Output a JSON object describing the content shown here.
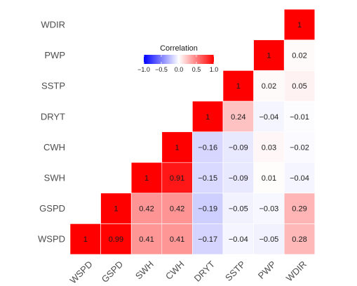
{
  "chart_data": {
    "type": "heatmap",
    "variables": [
      "WSPD",
      "GSPD",
      "SWH",
      "CWH",
      "DRYT",
      "SSTP",
      "PWP",
      "WDIR"
    ],
    "cells": [
      {
        "x": "WSPD",
        "y": "WSPD",
        "value": 1,
        "label": "1"
      },
      {
        "x": "GSPD",
        "y": "WSPD",
        "value": 0.99,
        "label": "0.99"
      },
      {
        "x": "SWH",
        "y": "WSPD",
        "value": 0.41,
        "label": "0.41"
      },
      {
        "x": "CWH",
        "y": "WSPD",
        "value": 0.41,
        "label": "0.41"
      },
      {
        "x": "DRYT",
        "y": "WSPD",
        "value": -0.17,
        "label": "−0.17"
      },
      {
        "x": "SSTP",
        "y": "WSPD",
        "value": -0.04,
        "label": "−0.04"
      },
      {
        "x": "PWP",
        "y": "WSPD",
        "value": -0.05,
        "label": "−0.05"
      },
      {
        "x": "WDIR",
        "y": "WSPD",
        "value": 0.28,
        "label": "0.28"
      },
      {
        "x": "GSPD",
        "y": "GSPD",
        "value": 1,
        "label": "1"
      },
      {
        "x": "SWH",
        "y": "GSPD",
        "value": 0.42,
        "label": "0.42"
      },
      {
        "x": "CWH",
        "y": "GSPD",
        "value": 0.42,
        "label": "0.42"
      },
      {
        "x": "DRYT",
        "y": "GSPD",
        "value": -0.19,
        "label": "−0.19"
      },
      {
        "x": "SSTP",
        "y": "GSPD",
        "value": -0.05,
        "label": "−0.05"
      },
      {
        "x": "PWP",
        "y": "GSPD",
        "value": -0.03,
        "label": "−0.03"
      },
      {
        "x": "WDIR",
        "y": "GSPD",
        "value": 0.29,
        "label": "0.29"
      },
      {
        "x": "SWH",
        "y": "SWH",
        "value": 1,
        "label": "1"
      },
      {
        "x": "CWH",
        "y": "SWH",
        "value": 0.91,
        "label": "0.91"
      },
      {
        "x": "DRYT",
        "y": "SWH",
        "value": -0.15,
        "label": "−0.15"
      },
      {
        "x": "SSTP",
        "y": "SWH",
        "value": -0.09,
        "label": "−0.09"
      },
      {
        "x": "PWP",
        "y": "SWH",
        "value": 0.01,
        "label": "0.01"
      },
      {
        "x": "WDIR",
        "y": "SWH",
        "value": -0.04,
        "label": "−0.04"
      },
      {
        "x": "CWH",
        "y": "CWH",
        "value": 1,
        "label": "1"
      },
      {
        "x": "DRYT",
        "y": "CWH",
        "value": -0.16,
        "label": "−0.16"
      },
      {
        "x": "SSTP",
        "y": "CWH",
        "value": -0.09,
        "label": "−0.09"
      },
      {
        "x": "PWP",
        "y": "CWH",
        "value": 0.03,
        "label": "0.03"
      },
      {
        "x": "WDIR",
        "y": "CWH",
        "value": -0.02,
        "label": "−0.02"
      },
      {
        "x": "DRYT",
        "y": "DRYT",
        "value": 1,
        "label": "1"
      },
      {
        "x": "SSTP",
        "y": "DRYT",
        "value": 0.24,
        "label": "0.24"
      },
      {
        "x": "PWP",
        "y": "DRYT",
        "value": -0.04,
        "label": "−0.04"
      },
      {
        "x": "WDIR",
        "y": "DRYT",
        "value": -0.01,
        "label": "−0.01"
      },
      {
        "x": "SSTP",
        "y": "SSTP",
        "value": 1,
        "label": "1"
      },
      {
        "x": "PWP",
        "y": "SSTP",
        "value": 0.02,
        "label": "0.02"
      },
      {
        "x": "WDIR",
        "y": "SSTP",
        "value": 0.05,
        "label": "0.05"
      },
      {
        "x": "PWP",
        "y": "PWP",
        "value": 1,
        "label": "1"
      },
      {
        "x": "WDIR",
        "y": "PWP",
        "value": 0.02,
        "label": "0.02"
      },
      {
        "x": "WDIR",
        "y": "WDIR",
        "value": 1,
        "label": "1"
      }
    ],
    "legend": {
      "title": "Correlation",
      "placement": "inside top-center",
      "range": [
        -1,
        1
      ],
      "ticks": [
        {
          "value": -1,
          "label": "−1.0"
        },
        {
          "value": -0.5,
          "label": "−0.5"
        },
        {
          "value": 0,
          "label": "0.0"
        },
        {
          "value": 0.5,
          "label": "0.5"
        },
        {
          "value": 1,
          "label": "1.0"
        }
      ]
    },
    "colors": {
      "low": "#0000ff",
      "mid": "#ffffff",
      "high": "#ff0000"
    },
    "grid": false
  }
}
